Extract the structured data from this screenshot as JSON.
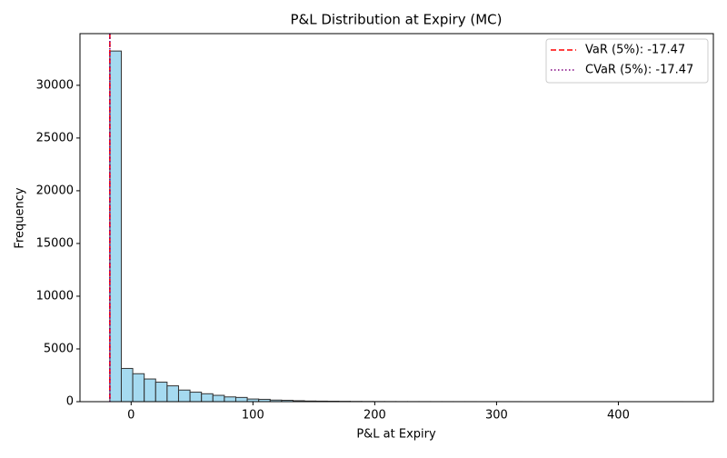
{
  "chart_data": {
    "type": "histogram",
    "title": "P&L Distribution at Expiry (MC)",
    "x_label": "P&L at Expiry",
    "y_label": "Frequency",
    "bins": [
      -17.47,
      -8.07,
      1.33,
      10.73,
      20.13,
      29.53,
      38.93,
      48.33,
      57.73,
      67.13,
      76.53,
      85.93,
      95.33,
      104.73,
      114.13,
      123.53,
      132.93,
      142.33,
      151.73,
      161.13,
      170.53,
      179.93,
      189.33,
      198.73,
      208.13,
      217.53,
      226.93,
      236.33,
      245.73,
      255.13,
      264.53,
      273.93,
      283.33,
      292.73,
      302.13,
      311.53,
      320.93,
      330.33,
      339.73,
      349.13,
      358.53,
      367.93,
      377.33,
      386.73,
      396.13,
      405.53,
      414.93,
      424.33,
      433.73,
      443.13,
      452.53
    ],
    "values": [
      33250,
      3150,
      2650,
      2150,
      1850,
      1500,
      1100,
      900,
      750,
      600,
      450,
      400,
      250,
      220,
      150,
      130,
      90,
      60,
      50,
      40,
      30,
      20,
      15,
      10,
      8,
      6,
      5,
      4,
      3,
      3,
      2,
      2,
      1,
      1,
      1,
      1,
      0,
      0,
      0,
      0,
      0,
      0,
      0,
      0,
      0,
      0,
      0,
      0,
      0,
      1
    ],
    "color": "#87ceeb",
    "edge_color": "#333333",
    "lines": [
      {
        "name": "VaR (5%): -17.47",
        "value": -17.47,
        "color": "#ff0000",
        "style": "dashed"
      },
      {
        "name": "CVaR (5%): -17.47",
        "value": -17.47,
        "color": "#800080",
        "style": "dotted"
      }
    ],
    "legend": "upper right",
    "xlim": [
      -42,
      478
    ],
    "xticks": [
      0,
      100,
      200,
      300,
      400
    ],
    "ylim": [
      0,
      34900
    ],
    "yticks": [
      0,
      5000,
      10000,
      15000,
      20000,
      25000,
      30000
    ]
  }
}
